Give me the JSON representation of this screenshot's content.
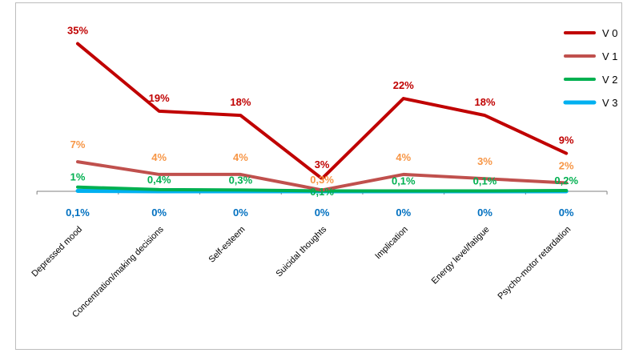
{
  "chart_data": {
    "type": "line",
    "categories": [
      "Depressed mood",
      "Concentration/making decisions",
      "Self-esteem",
      "Suicidal thoughts",
      "Implication",
      "Energy level/fatigue",
      "Psycho-motor retardation"
    ],
    "series": [
      {
        "name": "V  0",
        "color": "#c00000",
        "values": [
          35,
          19,
          18,
          3,
          22,
          18,
          9
        ],
        "labels": [
          "35%",
          "19%",
          "18%",
          "3%",
          "22%",
          "18%",
          "9%"
        ]
      },
      {
        "name": "V 1",
        "color": "#c0504d",
        "label_color": "#f79646",
        "values": [
          7,
          4,
          4,
          0.3,
          4,
          3,
          2
        ],
        "labels": [
          "7%",
          "4%",
          "4%",
          "0,3%",
          "4%",
          "3%",
          "2%"
        ]
      },
      {
        "name": "V 2",
        "color": "#00b050",
        "values": [
          1,
          0.4,
          0.3,
          0.1,
          0.1,
          0.1,
          0.2
        ],
        "labels": [
          "1%",
          "0,4%",
          "0,3%",
          "0,1%",
          "0,1%",
          "0,1%",
          "0,2%"
        ]
      },
      {
        "name": "V 3",
        "color": "#00b0f0",
        "label_color": "#0070c0",
        "values": [
          0.1,
          0,
          0,
          0,
          0,
          0,
          0
        ],
        "labels": [
          "0,1%",
          "0%",
          "0%",
          "0%",
          "0%",
          "0%",
          "0%"
        ]
      }
    ],
    "ylim": [
      0,
      37
    ],
    "grid": false,
    "legend_position": "top-right",
    "title": "",
    "xlabel": "",
    "ylabel": ""
  }
}
